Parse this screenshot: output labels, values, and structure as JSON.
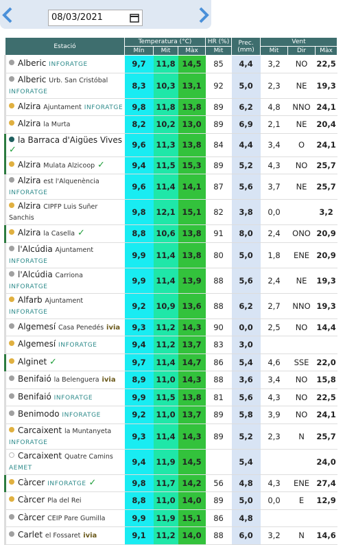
{
  "date": "08/03/2021",
  "table": {
    "headers": {
      "station": "Estació",
      "temperature": "Temperatura (°C)",
      "humidity": "HR (%)",
      "precipitation": "Prec. (mm)",
      "wind": "Vent",
      "sub": [
        "Mín",
        "Mit",
        "Màx",
        "Mit",
        "Mit",
        "Dir",
        "Màx"
      ]
    },
    "rows": [
      {
        "name": "Alberic",
        "source": "INFORATGE",
        "dot": "#a0a0a0",
        "cells": [
          "9,7",
          "11,8",
          "14,5",
          "85",
          "4,4",
          "3,2",
          "NO",
          "22,5"
        ]
      },
      {
        "name": "Alberic",
        "detail": "Urb. San Cristóbal",
        "source": "INFORATGE",
        "dot": "#a0a0a0",
        "cells": [
          "8,3",
          "10,3",
          "13,1",
          "92",
          "5,0",
          "2,3",
          "NE",
          "19,3"
        ]
      },
      {
        "name": "Alzira",
        "detail": "Ajuntament",
        "source": "INFORATGE",
        "dot": "#e0b040",
        "cells": [
          "9,8",
          "11,8",
          "13,8",
          "89",
          "6,2",
          "4,8",
          "NNO",
          "24,1"
        ]
      },
      {
        "name": "Alzira",
        "detail": "la Murta",
        "dot": "#e0b040",
        "cells": [
          "8,2",
          "10,2",
          "13,0",
          "89",
          "6,9",
          "2,1",
          "NE",
          "20,4"
        ]
      },
      {
        "name": "la Barraca d'Aigües Vives",
        "dot": "#1f5f5f",
        "check": true,
        "cells": [
          "9,6",
          "11,3",
          "13,8",
          "84",
          "4,4",
          "3,4",
          "O",
          "24,1"
        ]
      },
      {
        "name": "Alzira",
        "detail": "Mulata Alzicoop",
        "dot": "#e0b040",
        "check": true,
        "cells": [
          "9,4",
          "11,5",
          "15,3",
          "89",
          "5,2",
          "4,3",
          "NO",
          "25,7"
        ]
      },
      {
        "name": "Alzira",
        "detail": "est l'Alquenència",
        "source": "INFORATGE",
        "dot": "#a0a0a0",
        "cells": [
          "9,6",
          "11,4",
          "14,1",
          "87",
          "5,6",
          "3,7",
          "NE",
          "25,7"
        ]
      },
      {
        "name": "Alzira",
        "detail": "CIPFP Luis Suñer Sanchis",
        "dot": "#e0b040",
        "cells": [
          "9,8",
          "12,1",
          "15,1",
          "82",
          "3,8",
          "0,0",
          null,
          "3,2"
        ]
      },
      {
        "name": "Alzira",
        "detail": "la Casella",
        "dot": "#e0b040",
        "check": true,
        "cells": [
          "8,8",
          "10,6",
          "13,8",
          "91",
          "8,0",
          "2,4",
          "ONO",
          "20,9"
        ]
      },
      {
        "name": "l'Alcúdia",
        "detail": "Ajuntament",
        "source": "INFORATGE",
        "dot": "#a0a0a0",
        "cells": [
          "9,9",
          "11,4",
          "13,8",
          "80",
          "5,0",
          "1,8",
          "ENE",
          "20,9"
        ]
      },
      {
        "name": "l'Alcúdia",
        "detail": "Carriona",
        "source": "INFORATGE",
        "dot": "#a0a0a0",
        "cells": [
          "9,9",
          "11,4",
          "13,9",
          "88",
          "5,6",
          "2,4",
          "NE",
          "19,3"
        ]
      },
      {
        "name": "Alfarb",
        "detail": "Ajuntament",
        "source": "INFORATGE",
        "dot": "#e0b040",
        "cells": [
          "9,2",
          "10,9",
          "13,6",
          "88",
          "6,2",
          "2,7",
          "NNO",
          "19,3"
        ]
      },
      {
        "name": "Algemesí",
        "detail": "Casa Penedés",
        "source": "ivia",
        "dot": "#a0a0a0",
        "cells": [
          "9,3",
          "11,2",
          "14,3",
          "90",
          "0,0",
          "2,5",
          "NO",
          "14,4"
        ]
      },
      {
        "name": "Algemesí",
        "source": "INFORATGE",
        "dot": "#e0b040",
        "cells": [
          "9,4",
          "11,2",
          "13,7",
          "83",
          "3,0",
          null,
          null,
          null
        ]
      },
      {
        "name": "Alginet",
        "dot": "#e0b040",
        "check": true,
        "cells": [
          "9,7",
          "11,4",
          "14,7",
          "86",
          "5,4",
          "4,6",
          "SSE",
          "22,0"
        ]
      },
      {
        "name": "Benifaió",
        "detail": "la Belenguera",
        "source": "ivia",
        "dot": "#a0a0a0",
        "cells": [
          "8,9",
          "11,0",
          "14,3",
          "88",
          "3,6",
          "3,4",
          "NO",
          "15,8"
        ]
      },
      {
        "name": "Benifaió",
        "source": "INFORATGE",
        "dot": "#a0a0a0",
        "cells": [
          "9,9",
          "11,5",
          "13,8",
          "81",
          "5,6",
          "4,3",
          "NO",
          "22,5"
        ]
      },
      {
        "name": "Benimodo",
        "source": "INFORATGE",
        "dot": "#a0a0a0",
        "cells": [
          "9,2",
          "11,0",
          "13,7",
          "89",
          "5,8",
          "3,9",
          "NO",
          "24,1"
        ]
      },
      {
        "name": "Carcaixent",
        "detail": "la Muntanyeta",
        "source": "INFORATGE",
        "dot": "#e0b040",
        "cells": [
          "9,3",
          "11,4",
          "14,3",
          "89",
          "5,2",
          "2,3",
          "N",
          "25,7"
        ]
      },
      {
        "name": "Carcaixent",
        "detail": "Quatre Camins",
        "source": "AEMET",
        "dot": "#ffffff",
        "cells": [
          "9,4",
          "11,9",
          "14,5",
          null,
          "5,4",
          null,
          null,
          "24,0"
        ]
      },
      {
        "name": "Càrcer",
        "source": "INFORATGE",
        "dot": "#e0b040",
        "check": true,
        "cells": [
          "9,8",
          "11,7",
          "14,2",
          "56",
          "4,8",
          "4,3",
          "ENE",
          "27,4"
        ]
      },
      {
        "name": "Càrcer",
        "detail": "Pla del Rei",
        "dot": "#e0b040",
        "cells": [
          "8,8",
          "11,0",
          "14,0",
          "89",
          "5,0",
          "0,0",
          "E",
          "12,9"
        ]
      },
      {
        "name": "Càrcer",
        "detail": "CEIP Pare Gumilla",
        "dot": "#a0a0a0",
        "cells": [
          "9,9",
          "11,9",
          "15,1",
          "86",
          "4,8",
          null,
          null,
          null
        ]
      },
      {
        "name": "Carlet",
        "detail": "el Fossaret",
        "source": "ivia",
        "dot": "#a0a0a0",
        "cells": [
          "9,1",
          "11,2",
          "14,0",
          "88",
          "6,0",
          "3,2",
          "N",
          "14,6"
        ]
      }
    ]
  }
}
